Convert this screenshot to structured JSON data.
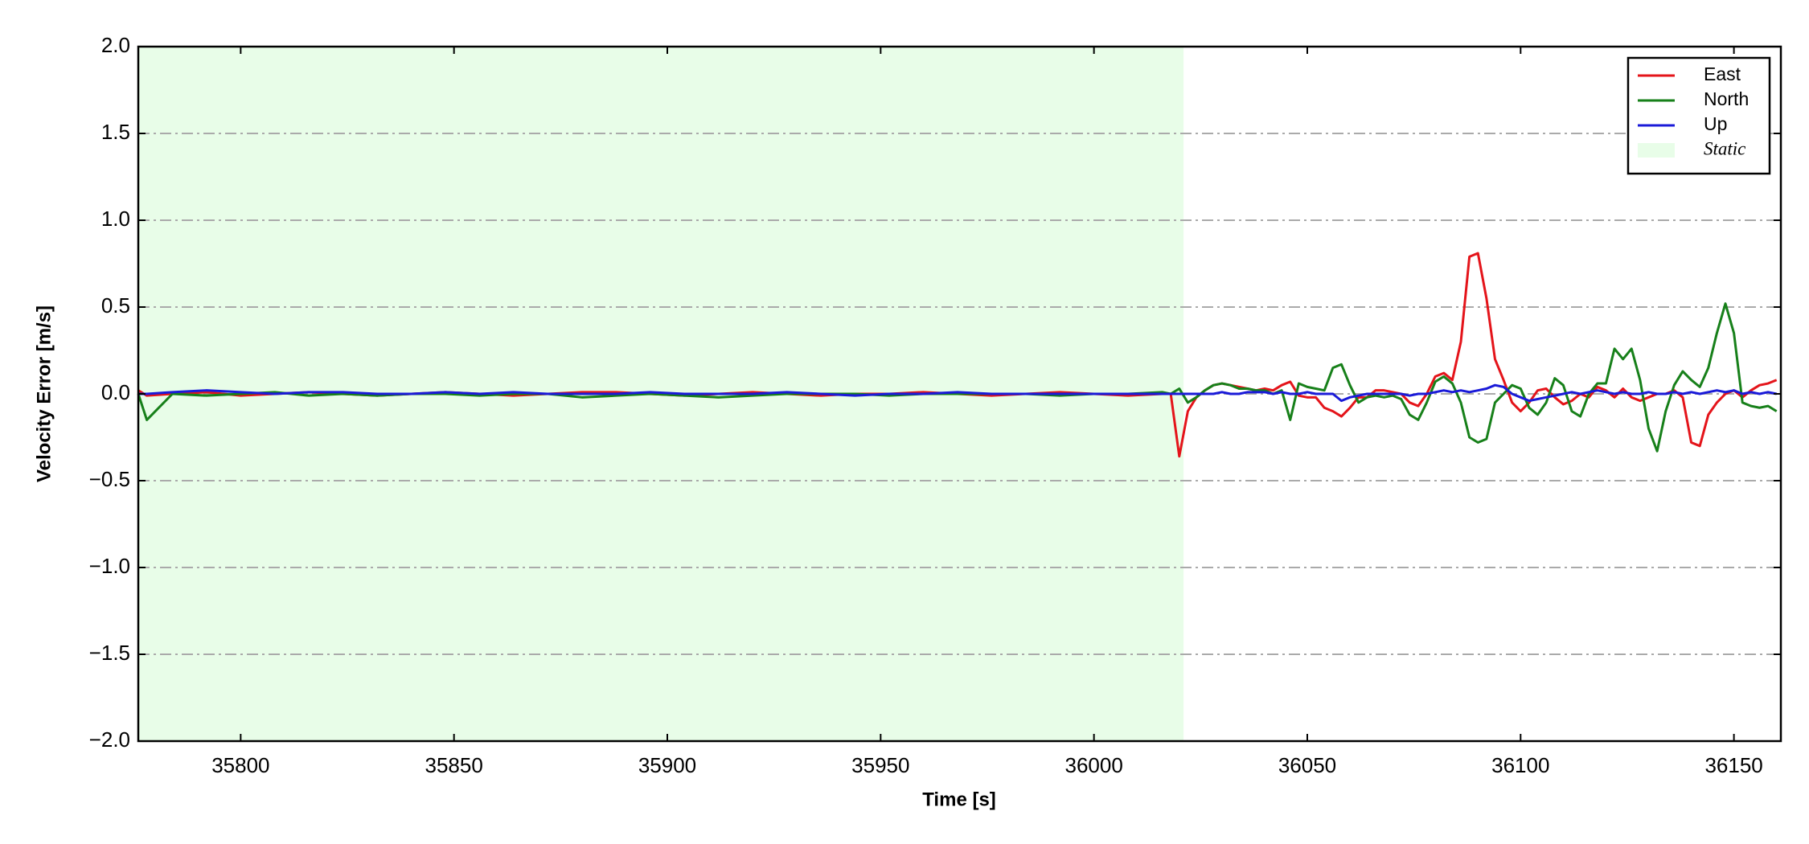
{
  "chart_data": {
    "type": "line",
    "xlabel": "Time [s]",
    "ylabel": "Velocity Error [m/s]",
    "xlim": [
      35776,
      36161
    ],
    "ylim": [
      -2,
      2
    ],
    "xticks": [
      35800,
      35850,
      35900,
      35950,
      36000,
      36050,
      36100,
      36150
    ],
    "yticks": [
      {
        "value": -2,
        "label": "−2.0"
      },
      {
        "value": -1.5,
        "label": "−1.5"
      },
      {
        "value": -1,
        "label": "−1.0"
      },
      {
        "value": -0.5,
        "label": "−0.5"
      },
      {
        "value": 0,
        "label": "0.0"
      },
      {
        "value": 0.5,
        "label": "0.5"
      },
      {
        "value": 1,
        "label": "1.0"
      },
      {
        "value": 1.5,
        "label": "1.5"
      },
      {
        "value": 2,
        "label": "2.0"
      }
    ],
    "grid": true,
    "legend": "upper right",
    "spans": [
      {
        "name": "Static",
        "start": 35776,
        "end": 36021,
        "color": "#e8fde8"
      }
    ],
    "x": [
      35776,
      35778,
      35784,
      35792,
      35800,
      35808,
      35816,
      35824,
      35832,
      35840,
      35848,
      35856,
      35864,
      35872,
      35880,
      35888,
      35896,
      35904,
      35912,
      35920,
      35928,
      35936,
      35944,
      35952,
      35960,
      35968,
      35976,
      35984,
      35992,
      36000,
      36008,
      36016,
      36018,
      36020,
      36022,
      36024,
      36026,
      36028,
      36030,
      36032,
      36034,
      36036,
      36038,
      36040,
      36042,
      36044,
      36046,
      36048,
      36050,
      36052,
      36054,
      36056,
      36058,
      36060,
      36062,
      36064,
      36066,
      36068,
      36070,
      36072,
      36074,
      36076,
      36078,
      36080,
      36082,
      36084,
      36086,
      36088,
      36090,
      36092,
      36094,
      36096,
      36098,
      36100,
      36102,
      36104,
      36106,
      36108,
      36110,
      36112,
      36114,
      36116,
      36118,
      36120,
      36122,
      36124,
      36126,
      36128,
      36130,
      36132,
      36134,
      36136,
      36138,
      36140,
      36142,
      36144,
      36146,
      36148,
      36150,
      36152,
      36154,
      36156,
      36158,
      36160
    ],
    "series": [
      {
        "name": "East",
        "color": "#e4141a",
        "values": [
          0.02,
          -0.01,
          0.0,
          0.01,
          -0.01,
          0.0,
          0.01,
          0.0,
          -0.01,
          0.0,
          0.01,
          0.0,
          -0.01,
          0.0,
          0.01,
          0.01,
          0.0,
          -0.01,
          0.0,
          0.01,
          0.0,
          -0.01,
          0.0,
          0.0,
          0.01,
          0.0,
          -0.01,
          0.0,
          0.01,
          0.0,
          -0.01,
          0.0,
          0.0,
          -0.36,
          -0.1,
          -0.02,
          0.02,
          0.05,
          0.06,
          0.05,
          0.04,
          0.03,
          0.02,
          0.03,
          0.02,
          0.05,
          0.07,
          -0.01,
          -0.02,
          -0.02,
          -0.08,
          -0.1,
          -0.13,
          -0.08,
          -0.02,
          -0.02,
          0.02,
          0.02,
          0.01,
          0.0,
          -0.05,
          -0.07,
          0.0,
          0.1,
          0.12,
          0.08,
          0.3,
          0.79,
          0.81,
          0.55,
          0.2,
          0.08,
          -0.05,
          -0.1,
          -0.05,
          0.02,
          0.03,
          -0.02,
          -0.06,
          -0.04,
          0.0,
          -0.02,
          0.04,
          0.02,
          -0.02,
          0.03,
          -0.02,
          -0.04,
          -0.02,
          0.0,
          0.0,
          0.02,
          -0.02,
          -0.28,
          -0.3,
          -0.12,
          -0.05,
          0.0,
          0.02,
          -0.02,
          0.02,
          0.05,
          0.06,
          0.08
        ]
      },
      {
        "name": "North",
        "color": "#17801a",
        "values": [
          0.0,
          -0.15,
          0.0,
          -0.01,
          0.0,
          0.01,
          -0.01,
          0.0,
          -0.01,
          0.0,
          0.0,
          -0.01,
          0.0,
          0.0,
          -0.02,
          -0.01,
          0.0,
          -0.01,
          -0.02,
          -0.01,
          0.0,
          0.0,
          0.0,
          -0.01,
          0.0,
          0.0,
          0.0,
          0.0,
          -0.01,
          0.0,
          0.0,
          0.01,
          0.0,
          0.03,
          -0.05,
          -0.02,
          0.02,
          0.05,
          0.06,
          0.05,
          0.03,
          0.03,
          0.02,
          0.02,
          0.0,
          0.02,
          -0.15,
          0.06,
          0.04,
          0.03,
          0.02,
          0.15,
          0.17,
          0.05,
          -0.05,
          -0.02,
          -0.01,
          -0.02,
          -0.01,
          -0.03,
          -0.12,
          -0.15,
          -0.05,
          0.07,
          0.1,
          0.06,
          -0.05,
          -0.25,
          -0.28,
          -0.26,
          -0.05,
          0.0,
          0.05,
          0.03,
          -0.08,
          -0.12,
          -0.05,
          0.09,
          0.05,
          -0.1,
          -0.13,
          0.0,
          0.06,
          0.06,
          0.26,
          0.2,
          0.26,
          0.08,
          -0.2,
          -0.33,
          -0.1,
          0.05,
          0.13,
          0.08,
          0.04,
          0.15,
          0.35,
          0.52,
          0.35,
          -0.05,
          -0.07,
          -0.08,
          -0.07,
          -0.1
        ]
      },
      {
        "name": "Up",
        "color": "#1a1ad8",
        "values": [
          0.0,
          0.0,
          0.01,
          0.02,
          0.01,
          0.0,
          0.01,
          0.01,
          0.0,
          0.0,
          0.01,
          0.0,
          0.01,
          0.0,
          0.0,
          0.0,
          0.01,
          0.0,
          0.0,
          0.0,
          0.01,
          0.0,
          -0.01,
          0.0,
          0.0,
          0.01,
          0.0,
          0.0,
          0.0,
          0.0,
          0.0,
          0.0,
          0.0,
          0.0,
          0.0,
          0.0,
          0.0,
          0.0,
          0.01,
          0.0,
          0.0,
          0.01,
          0.01,
          0.01,
          0.0,
          0.01,
          0.0,
          0.0,
          0.01,
          0.0,
          0.0,
          0.0,
          -0.04,
          -0.02,
          -0.01,
          0.0,
          0.0,
          0.0,
          0.0,
          0.0,
          -0.01,
          0.0,
          0.0,
          0.01,
          0.02,
          0.01,
          0.02,
          0.01,
          0.02,
          0.03,
          0.05,
          0.04,
          0.0,
          -0.02,
          -0.04,
          -0.03,
          -0.02,
          -0.01,
          0.0,
          0.01,
          0.0,
          0.01,
          0.02,
          0.01,
          0.0,
          0.01,
          0.0,
          0.0,
          0.01,
          0.0,
          0.0,
          0.01,
          0.0,
          0.01,
          0.0,
          0.01,
          0.02,
          0.01,
          0.02,
          0.0,
          0.01,
          0.0,
          0.01,
          0.0
        ]
      }
    ]
  }
}
